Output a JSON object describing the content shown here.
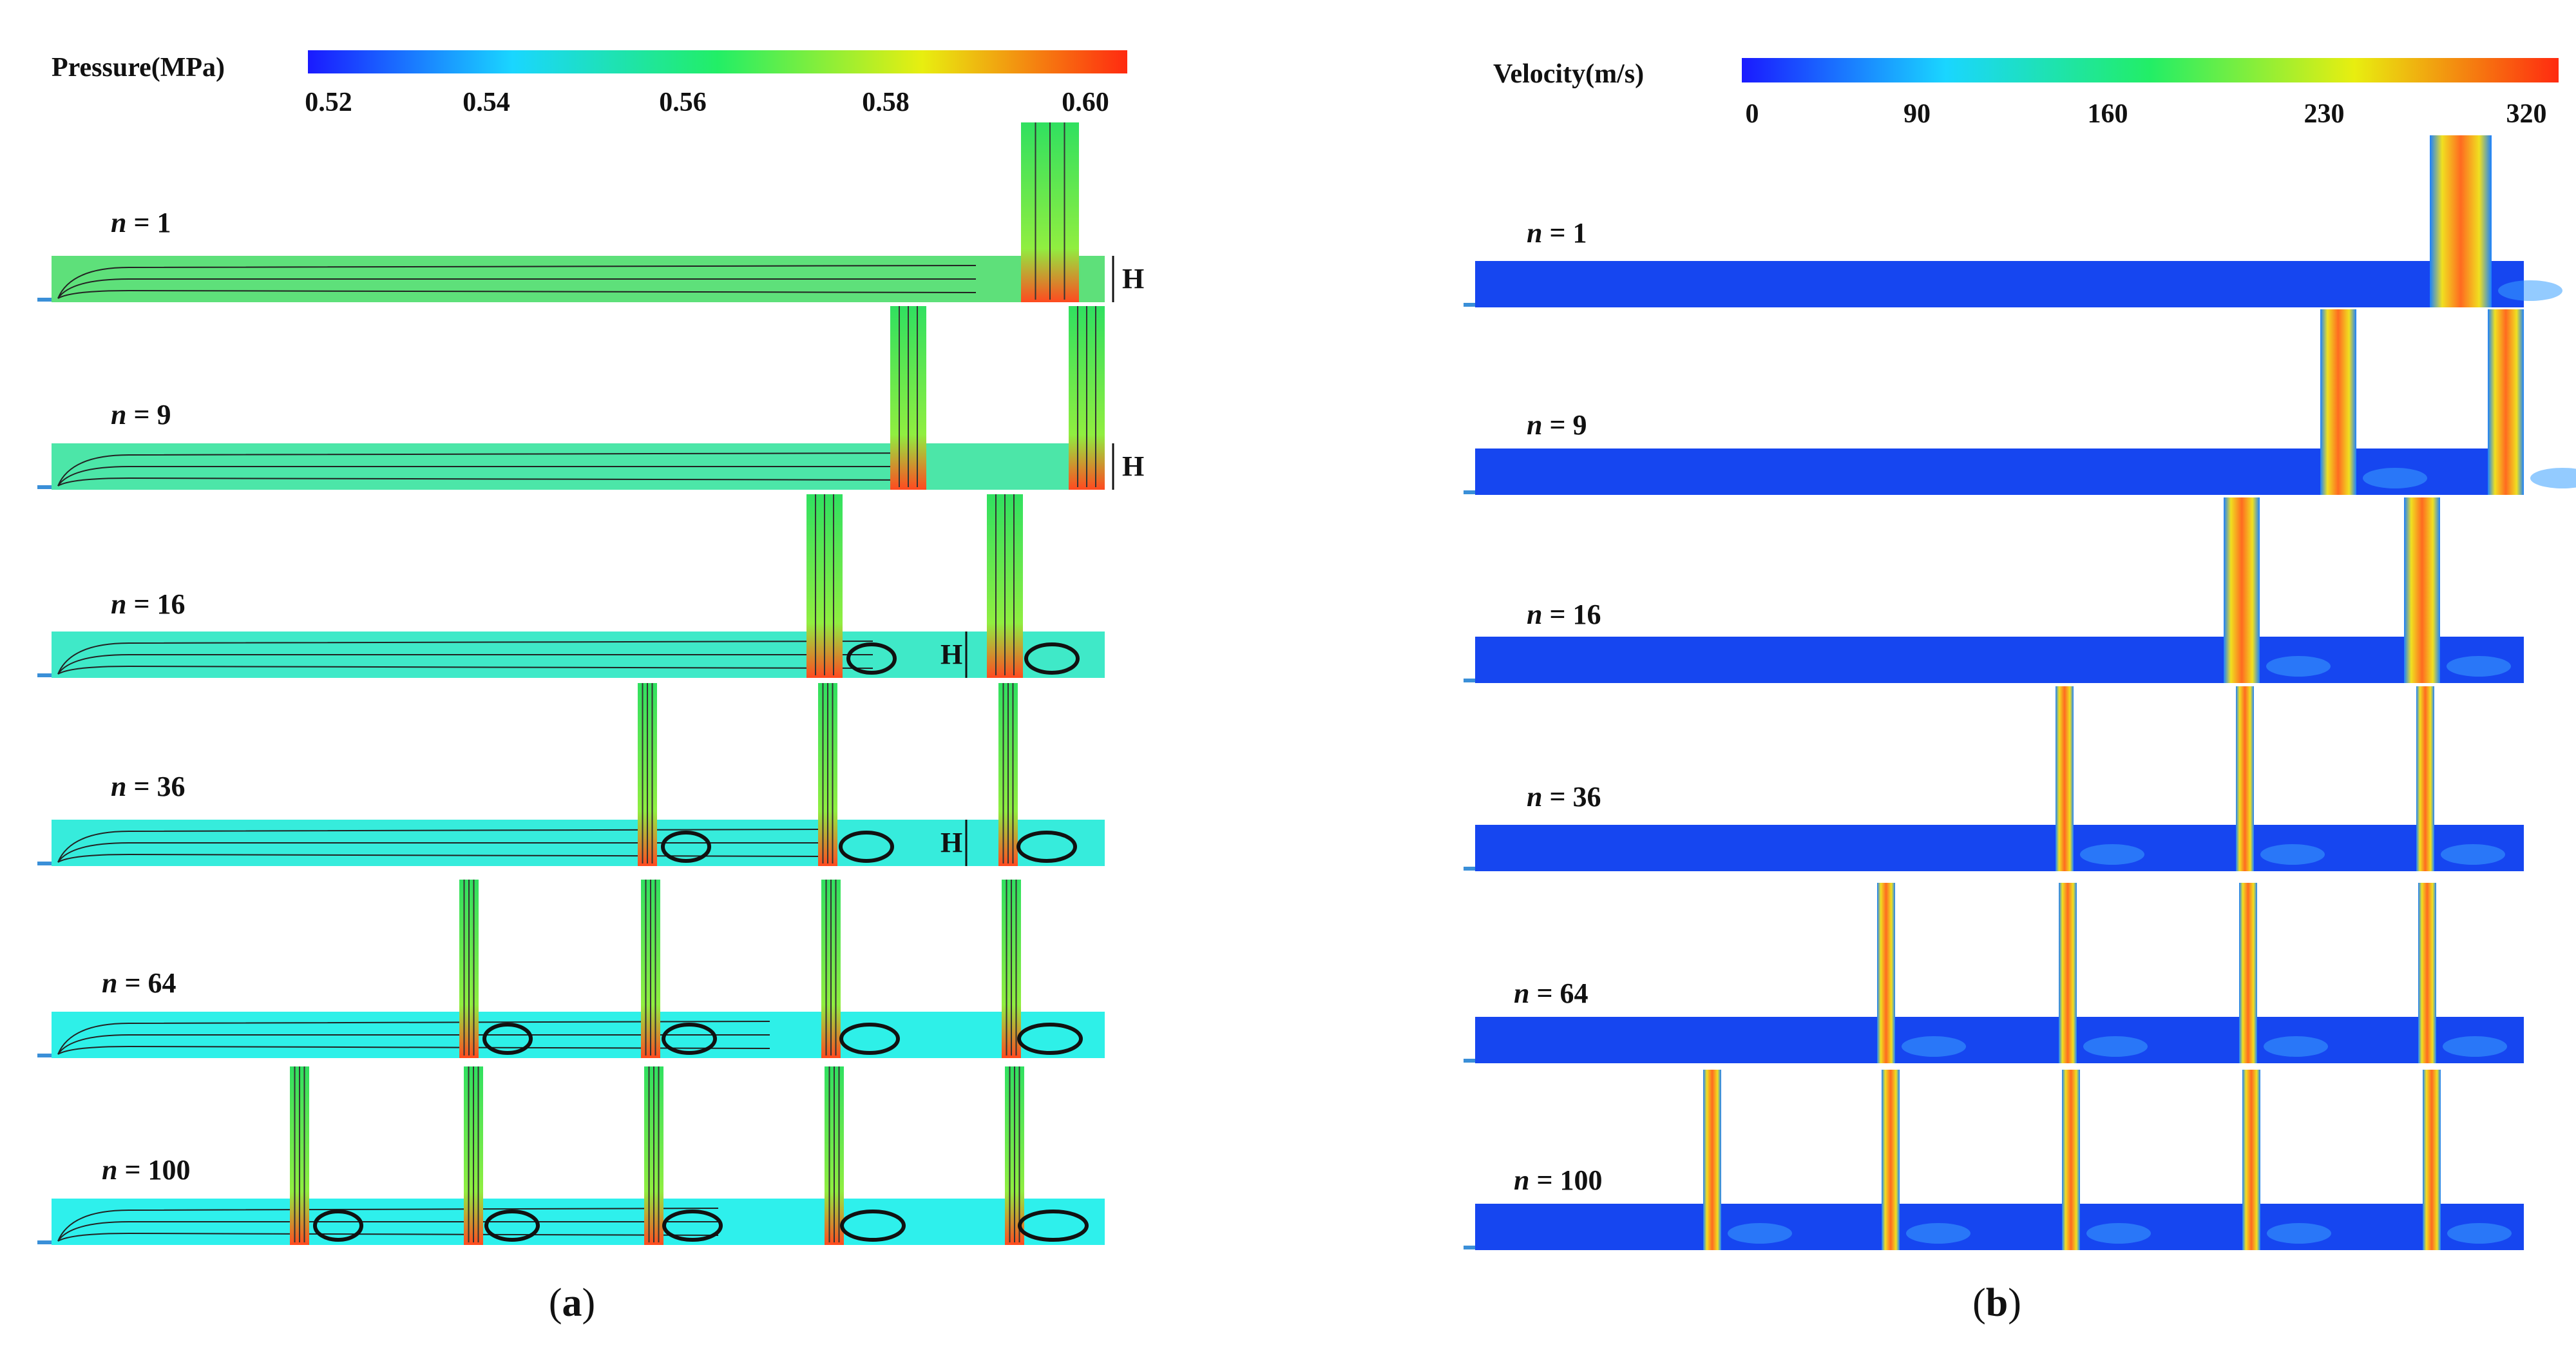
{
  "panel_a": {
    "colorbar": {
      "title": "Pressure(MPa)",
      "ticks": [
        "0.52",
        "0.54",
        "0.56",
        "0.58",
        "0.60"
      ]
    },
    "caption": {
      "open": "(",
      "letter": "a",
      "close": ")"
    },
    "height_marker": "H",
    "rows": [
      {
        "prefix": "n",
        "value": " = 1",
        "jets": 1
      },
      {
        "prefix": "n",
        "value": " = 9",
        "jets": 2
      },
      {
        "prefix": "n",
        "value": " = 16",
        "jets": 2
      },
      {
        "prefix": "n",
        "value": " = 36",
        "jets": 3
      },
      {
        "prefix": "n",
        "value": " = 64",
        "jets": 4
      },
      {
        "prefix": "n",
        "value": " = 100",
        "jets": 5
      }
    ]
  },
  "panel_b": {
    "colorbar": {
      "title": "Velocity(m/s)",
      "ticks": [
        "0",
        "90",
        "160",
        "230",
        "320"
      ]
    },
    "caption": {
      "open": "(",
      "letter": "b",
      "close": ")"
    },
    "rows": [
      {
        "prefix": "n",
        "value": " = 1",
        "jets": 1
      },
      {
        "prefix": "n",
        "value": " = 9",
        "jets": 2
      },
      {
        "prefix": "n",
        "value": " = 16",
        "jets": 2
      },
      {
        "prefix": "n",
        "value": " = 36",
        "jets": 3
      },
      {
        "prefix": "n",
        "value": " = 64",
        "jets": 4
      },
      {
        "prefix": "n",
        "value": " = 100",
        "jets": 5
      }
    ]
  },
  "colors": {
    "pressure_gradient": [
      "#1a1aff",
      "#1ad6ff",
      "#22ee66",
      "#e8ee10",
      "#ff2a10"
    ],
    "velocity_gradient": [
      "#1a1aff",
      "#1ad6ff",
      "#22ee66",
      "#e8ee10",
      "#ff2a10"
    ],
    "pressure_channel": [
      "#5ee07a",
      "#4ce6a8",
      "#3fe9c8",
      "#36ecdc",
      "#2ef0e8",
      "#2ef0ec"
    ],
    "velocity_channel": "#1646f0",
    "streamline": "#222222"
  }
}
